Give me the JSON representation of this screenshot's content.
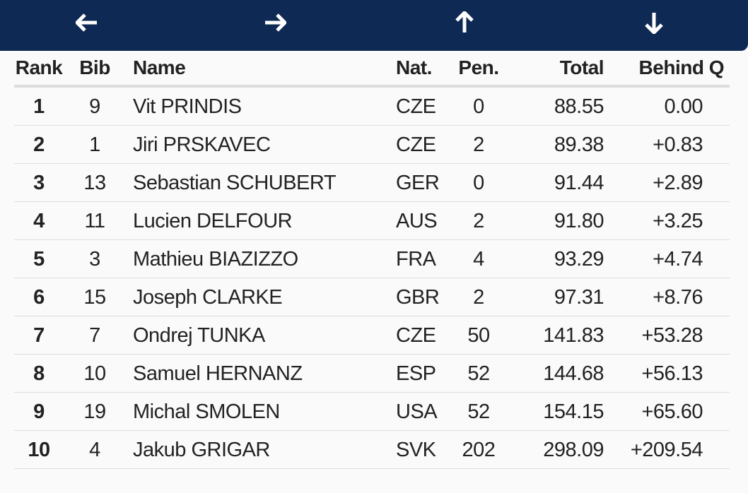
{
  "navigation": {
    "left_icon": "arrow-left-icon",
    "right_icon": "arrow-right-icon",
    "up_icon": "arrow-up-icon",
    "down_icon": "arrow-down-icon",
    "bar_color": "#0e2a54",
    "arrow_color": "#ffffff"
  },
  "table": {
    "columns": {
      "rank": "Rank",
      "bib": "Bib",
      "name": "Name",
      "nat": "Nat.",
      "pen": "Pen.",
      "total": "Total",
      "behind": "Behind Q"
    },
    "rows": [
      {
        "rank": "1",
        "bib": "9",
        "name": "Vit PRINDIS",
        "nat": "CZE",
        "pen": "0",
        "total": "88.55",
        "behind": "0.00"
      },
      {
        "rank": "2",
        "bib": "1",
        "name": "Jiri PRSKAVEC",
        "nat": "CZE",
        "pen": "2",
        "total": "89.38",
        "behind": "+0.83"
      },
      {
        "rank": "3",
        "bib": "13",
        "name": "Sebastian SCHUBERT",
        "nat": "GER",
        "pen": "0",
        "total": "91.44",
        "behind": "+2.89"
      },
      {
        "rank": "4",
        "bib": "11",
        "name": "Lucien DELFOUR",
        "nat": "AUS",
        "pen": "2",
        "total": "91.80",
        "behind": "+3.25"
      },
      {
        "rank": "5",
        "bib": "3",
        "name": "Mathieu BIAZIZZO",
        "nat": "FRA",
        "pen": "4",
        "total": "93.29",
        "behind": "+4.74"
      },
      {
        "rank": "6",
        "bib": "15",
        "name": "Joseph CLARKE",
        "nat": "GBR",
        "pen": "2",
        "total": "97.31",
        "behind": "+8.76"
      },
      {
        "rank": "7",
        "bib": "7",
        "name": "Ondrej TUNKA",
        "nat": "CZE",
        "pen": "50",
        "total": "141.83",
        "behind": "+53.28"
      },
      {
        "rank": "8",
        "bib": "10",
        "name": "Samuel HERNANZ",
        "nat": "ESP",
        "pen": "52",
        "total": "144.68",
        "behind": "+56.13"
      },
      {
        "rank": "9",
        "bib": "19",
        "name": "Michal SMOLEN",
        "nat": "USA",
        "pen": "52",
        "total": "154.15",
        "behind": "+65.60"
      },
      {
        "rank": "10",
        "bib": "4",
        "name": "Jakub GRIGAR",
        "nat": "SVK",
        "pen": "202",
        "total": "298.09",
        "behind": "+209.54"
      }
    ]
  }
}
